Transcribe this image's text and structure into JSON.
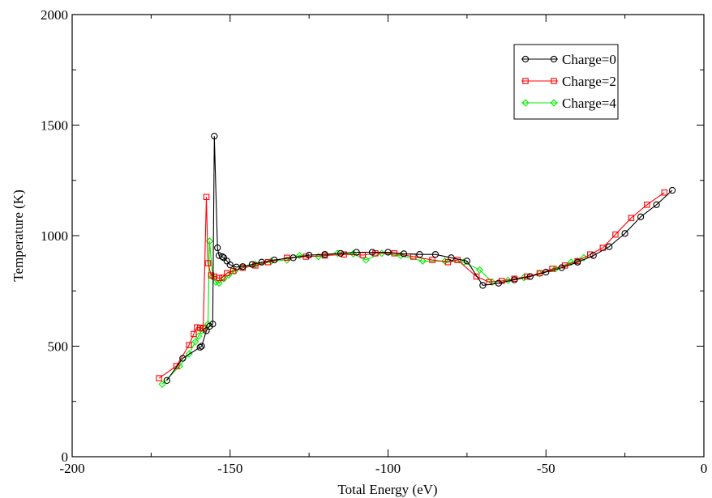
{
  "chart_data": {
    "type": "line",
    "title": "",
    "xlabel": "Total Energy (eV)",
    "ylabel": "Temperature (K)",
    "xlim": [
      -200,
      0
    ],
    "ylim": [
      0,
      2000
    ],
    "xticks": [
      -200,
      -150,
      -100,
      -50,
      0
    ],
    "yticks": [
      0,
      500,
      1000,
      1500,
      2000
    ],
    "xtick_labels": [
      "-200",
      "-150",
      "-100",
      "-50",
      "0"
    ],
    "ytick_labels": [
      "0",
      "500",
      "1000",
      "1500",
      "2000"
    ],
    "grid": false,
    "legend_position": "top-right",
    "series": [
      {
        "name": "Charge=0",
        "color": "#000000",
        "marker": "circle",
        "points": [
          [
            -170,
            345
          ],
          [
            -165,
            445
          ],
          [
            -159.5,
            495
          ],
          [
            -159,
            500
          ],
          [
            -157.5,
            570
          ],
          [
            -156.5,
            590
          ],
          [
            -155.5,
            600
          ],
          [
            -155,
            1450
          ],
          [
            -154,
            945
          ],
          [
            -153.5,
            910
          ],
          [
            -152.5,
            905
          ],
          [
            -152,
            900
          ],
          [
            -151,
            885
          ],
          [
            -150,
            868
          ],
          [
            -148,
            858
          ],
          [
            -146,
            860
          ],
          [
            -143,
            870
          ],
          [
            -140,
            880
          ],
          [
            -136,
            890
          ],
          [
            -130,
            900
          ],
          [
            -125,
            912
          ],
          [
            -120,
            915
          ],
          [
            -115,
            920
          ],
          [
            -110,
            925
          ],
          [
            -105,
            925
          ],
          [
            -100,
            925
          ],
          [
            -95,
            918
          ],
          [
            -90,
            915
          ],
          [
            -85,
            915
          ],
          [
            -80,
            900
          ],
          [
            -75,
            885
          ],
          [
            -70,
            775
          ],
          [
            -65,
            785
          ],
          [
            -60,
            800
          ],
          [
            -55,
            815
          ],
          [
            -50,
            835
          ],
          [
            -45,
            855
          ],
          [
            -40,
            880
          ],
          [
            -35,
            910
          ],
          [
            -30,
            950
          ],
          [
            -25,
            1010
          ],
          [
            -20,
            1085
          ],
          [
            -15,
            1140
          ],
          [
            -10,
            1205
          ]
        ]
      },
      {
        "name": "Charge=2",
        "color": "#ff0000",
        "marker": "square",
        "points": [
          [
            -172.5,
            355
          ],
          [
            -167,
            410
          ],
          [
            -163,
            505
          ],
          [
            -161.5,
            555
          ],
          [
            -160.5,
            585
          ],
          [
            -159.5,
            583
          ],
          [
            -158.5,
            580
          ],
          [
            -157.5,
            1175
          ],
          [
            -157,
            875
          ],
          [
            -156,
            820
          ],
          [
            -155,
            815
          ],
          [
            -153.5,
            808
          ],
          [
            -152.5,
            810
          ],
          [
            -151,
            830
          ],
          [
            -149,
            840
          ],
          [
            -146,
            855
          ],
          [
            -142,
            865
          ],
          [
            -138,
            880
          ],
          [
            -132,
            900
          ],
          [
            -126,
            905
          ],
          [
            -120,
            910
          ],
          [
            -114,
            915
          ],
          [
            -108,
            912
          ],
          [
            -104,
            920
          ],
          [
            -98,
            920
          ],
          [
            -92,
            905
          ],
          [
            -86,
            890
          ],
          [
            -81,
            880
          ],
          [
            -78,
            890
          ],
          [
            -72,
            815
          ],
          [
            -68,
            790
          ],
          [
            -64,
            795
          ],
          [
            -60,
            805
          ],
          [
            -56,
            815
          ],
          [
            -52,
            830
          ],
          [
            -48,
            850
          ],
          [
            -44,
            865
          ],
          [
            -40,
            885
          ],
          [
            -36,
            915
          ],
          [
            -32,
            945
          ],
          [
            -28,
            1005
          ],
          [
            -23,
            1080
          ],
          [
            -18,
            1140
          ],
          [
            -12.5,
            1195
          ]
        ]
      },
      {
        "name": "Charge=4",
        "color": "#00ee00",
        "marker": "diamond",
        "points": [
          [
            -171.5,
            328
          ],
          [
            -166,
            410
          ],
          [
            -163,
            465
          ],
          [
            -161,
            520
          ],
          [
            -160,
            545
          ],
          [
            -159,
            570
          ],
          [
            -158,
            580
          ],
          [
            -157,
            600
          ],
          [
            -156.5,
            975
          ],
          [
            -155.5,
            815
          ],
          [
            -154.5,
            790
          ],
          [
            -153.5,
            785
          ],
          [
            -152,
            805
          ],
          [
            -150.5,
            822
          ],
          [
            -148.5,
            840
          ],
          [
            -146,
            855
          ],
          [
            -142,
            870
          ],
          [
            -137,
            885
          ],
          [
            -132,
            890
          ],
          [
            -128,
            910
          ],
          [
            -122,
            905
          ],
          [
            -116,
            920
          ],
          [
            -111,
            918
          ],
          [
            -107,
            890
          ],
          [
            -102,
            920
          ],
          [
            -96,
            910
          ],
          [
            -89,
            885
          ],
          [
            -82,
            885
          ],
          [
            -76,
            880
          ],
          [
            -71,
            845
          ],
          [
            -67,
            790
          ],
          [
            -62,
            798
          ],
          [
            -57,
            810
          ],
          [
            -52,
            828
          ],
          [
            -47,
            850
          ],
          [
            -42,
            880
          ],
          [
            -38,
            900
          ]
        ]
      }
    ]
  }
}
